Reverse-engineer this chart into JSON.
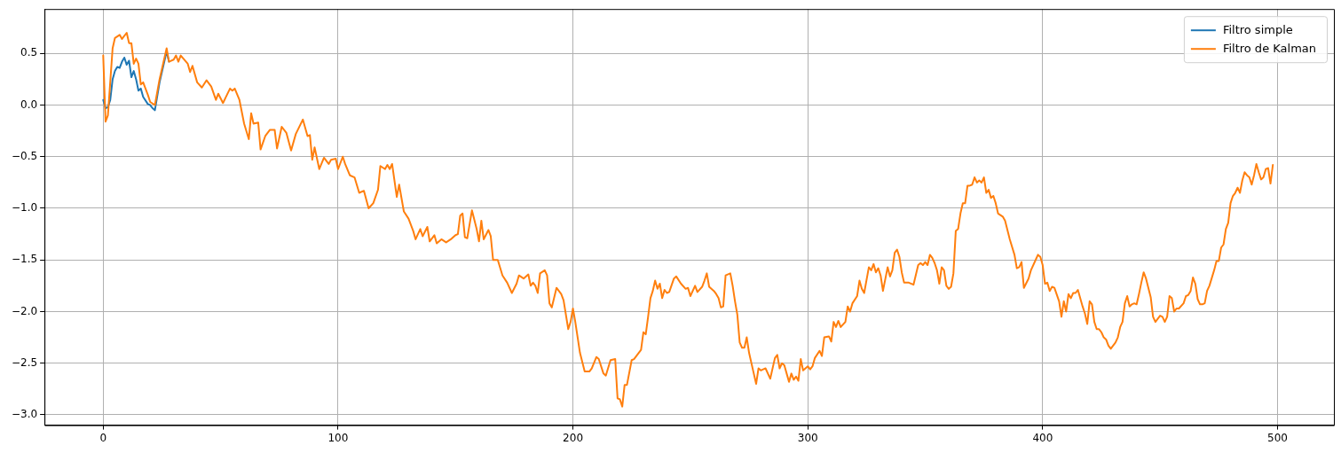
{
  "chart_data": {
    "type": "line",
    "legend": "top right",
    "grid": true,
    "xlim": [
      -25,
      524
    ],
    "ylim": [
      -3.1,
      0.93
    ],
    "xticks": [
      0,
      100,
      200,
      300,
      400,
      500
    ],
    "yticks": [
      {
        "value": -3,
        "label": "−3.0"
      },
      {
        "value": -2.5,
        "label": "−2.5"
      },
      {
        "value": -2,
        "label": "−2.0"
      },
      {
        "value": -1.5,
        "label": "−1.5"
      },
      {
        "value": -1,
        "label": "−1.0"
      },
      {
        "value": -0.5,
        "label": "−0.5"
      },
      {
        "value": 0,
        "label": "0.0"
      },
      0.5
    ],
    "series": [
      {
        "name": "Filtro simple",
        "color": "#1f77b4",
        "x": [
          0,
          1,
          2,
          3,
          4,
          5,
          6,
          7,
          8,
          9,
          10,
          11,
          12,
          13,
          14,
          15,
          16,
          17,
          19,
          20,
          21,
          22,
          24,
          27,
          28
        ],
        "values": [
          0.05,
          -0.03,
          -0.02,
          0.05,
          0.25,
          0.33,
          0.37,
          0.36,
          0.42,
          0.46,
          0.39,
          0.43,
          0.27,
          0.33,
          0.25,
          0.14,
          0.16,
          0.08,
          0.01,
          0.0,
          -0.03,
          -0.05,
          0.22,
          0.52,
          0.42
        ]
      },
      {
        "name": "Filtro de Kalman",
        "color": "#ff7f0e",
        "x": [
          0,
          1,
          2,
          4,
          5,
          7,
          8,
          10,
          11,
          12,
          13,
          14,
          15,
          16,
          17,
          19,
          20,
          22,
          24,
          27,
          28,
          30,
          31,
          32,
          33,
          36,
          37,
          38,
          40,
          42,
          44,
          46,
          48,
          49,
          51,
          54,
          55,
          56,
          58,
          60,
          62,
          63,
          64,
          66,
          67,
          69,
          71,
          73,
          74,
          76,
          78,
          80,
          82,
          85,
          87,
          88,
          89,
          90,
          92,
          94,
          96,
          97,
          99,
          100,
          102,
          103,
          105,
          107,
          109,
          111,
          113,
          115,
          117,
          118,
          120,
          121,
          122,
          123,
          125,
          126,
          128,
          130,
          132,
          133,
          135,
          136,
          138,
          139,
          141,
          142,
          144,
          146,
          148,
          150,
          151,
          152,
          153,
          154,
          155,
          157,
          159,
          160,
          161,
          162,
          164,
          165,
          166,
          168,
          170,
          172,
          174,
          176,
          177,
          179,
          181,
          182,
          183,
          184,
          185,
          186,
          188,
          189,
          190,
          191,
          193,
          195,
          196,
          198,
          199,
          200,
          201,
          203,
          205,
          207,
          208,
          210,
          211,
          213,
          214,
          216,
          218,
          219,
          220,
          221,
          222,
          223,
          225,
          226,
          228,
          229,
          230,
          231,
          232,
          233,
          234,
          235,
          236,
          237,
          238,
          239,
          240,
          241,
          243,
          244,
          246,
          248,
          249,
          250,
          252,
          253,
          255,
          256,
          257,
          258,
          260,
          261,
          262,
          263,
          264,
          265,
          267,
          268,
          269,
          270,
          271,
          272,
          273,
          274,
          275,
          277,
          278,
          279,
          280,
          281,
          282,
          284,
          286,
          287,
          288,
          289,
          290,
          291,
          292,
          293,
          294,
          295,
          296,
          297,
          298,
          300,
          301,
          302,
          303,
          305,
          306,
          307,
          309,
          310,
          311,
          312,
          313,
          314,
          316,
          317,
          318,
          319,
          321,
          322,
          323,
          324,
          326,
          327,
          328,
          329,
          330,
          331,
          332,
          334,
          335,
          336,
          337,
          338,
          339,
          340,
          341,
          343,
          345,
          347,
          348,
          349,
          350,
          351,
          352,
          353,
          354,
          355,
          356,
          357,
          358,
          359,
          360,
          361,
          362,
          363,
          364,
          365,
          366,
          367,
          368,
          369,
          370,
          371,
          372,
          373,
          374,
          375,
          376,
          377,
          378,
          379,
          380,
          381,
          383,
          384,
          386,
          388,
          389,
          390,
          391,
          392,
          394,
          395,
          397,
          398,
          399,
          400,
          401,
          402,
          403,
          404,
          405,
          407,
          408,
          409,
          410,
          411,
          412,
          413,
          414,
          415,
          417,
          418,
          419,
          420,
          421,
          422,
          423,
          424,
          425,
          426,
          427,
          428,
          429,
          430,
          431,
          432,
          433,
          434,
          435,
          436,
          437,
          438,
          439,
          440,
          441,
          442,
          443,
          444,
          446,
          447,
          448,
          449,
          450,
          451,
          452,
          453,
          454,
          455,
          456,
          457,
          458,
          460,
          461,
          462,
          463,
          464,
          465,
          466,
          467,
          468,
          469,
          470,
          471,
          473,
          474,
          475,
          476,
          477,
          478,
          479,
          480,
          481,
          482,
          483,
          484,
          485,
          486,
          487,
          488,
          489,
          490,
          491,
          492,
          493,
          494,
          495,
          496,
          497,
          498
        ],
        "values": [
          0.48,
          -0.16,
          -0.1,
          0.55,
          0.65,
          0.68,
          0.64,
          0.7,
          0.6,
          0.6,
          0.4,
          0.45,
          0.4,
          0.2,
          0.22,
          0.1,
          0.03,
          0.0,
          0.25,
          0.55,
          0.42,
          0.44,
          0.48,
          0.42,
          0.48,
          0.4,
          0.32,
          0.38,
          0.22,
          0.17,
          0.24,
          0.18,
          0.05,
          0.11,
          0.02,
          0.16,
          0.14,
          0.16,
          0.05,
          -0.18,
          -0.33,
          -0.08,
          -0.18,
          -0.17,
          -0.43,
          -0.3,
          -0.24,
          -0.24,
          -0.42,
          -0.21,
          -0.27,
          -0.44,
          -0.28,
          -0.14,
          -0.3,
          -0.29,
          -0.53,
          -0.41,
          -0.62,
          -0.51,
          -0.57,
          -0.53,
          -0.52,
          -0.62,
          -0.5,
          -0.57,
          -0.68,
          -0.7,
          -0.85,
          -0.83,
          -1.0,
          -0.95,
          -0.82,
          -0.59,
          -0.62,
          -0.58,
          -0.62,
          -0.57,
          -0.89,
          -0.77,
          -1.03,
          -1.1,
          -1.22,
          -1.3,
          -1.2,
          -1.27,
          -1.18,
          -1.32,
          -1.26,
          -1.34,
          -1.3,
          -1.33,
          -1.3,
          -1.26,
          -1.25,
          -1.07,
          -1.05,
          -1.28,
          -1.29,
          -1.02,
          -1.2,
          -1.32,
          -1.12,
          -1.3,
          -1.21,
          -1.27,
          -1.5,
          -1.5,
          -1.65,
          -1.72,
          -1.82,
          -1.73,
          -1.65,
          -1.68,
          -1.64,
          -1.75,
          -1.72,
          -1.75,
          -1.82,
          -1.63,
          -1.6,
          -1.65,
          -1.92,
          -1.96,
          -1.77,
          -1.83,
          -1.89,
          -2.17,
          -2.1,
          -1.97,
          -2.1,
          -2.4,
          -2.58,
          -2.58,
          -2.55,
          -2.44,
          -2.46,
          -2.6,
          -2.62,
          -2.47,
          -2.46,
          -2.84,
          -2.85,
          -2.92,
          -2.71,
          -2.71,
          -2.47,
          -2.46,
          -2.4,
          -2.37,
          -2.2,
          -2.22,
          -2.05,
          -1.87,
          -1.8,
          -1.7,
          -1.78,
          -1.73,
          -1.87,
          -1.79,
          -1.82,
          -1.81,
          -1.68,
          -1.66,
          -1.73,
          -1.78,
          -1.77,
          -1.85,
          -1.75,
          -1.81,
          -1.76,
          -1.7,
          -1.63,
          -1.76,
          -1.8,
          -1.83,
          -1.87,
          -1.96,
          -1.95,
          -1.65,
          -1.63,
          -1.75,
          -1.9,
          -2.03,
          -2.3,
          -2.35,
          -2.35,
          -2.25,
          -2.4,
          -2.6,
          -2.7,
          -2.55,
          -2.57,
          -2.56,
          -2.55,
          -2.65,
          -2.45,
          -2.42,
          -2.55,
          -2.5,
          -2.52,
          -2.6,
          -2.68,
          -2.6,
          -2.66,
          -2.63,
          -2.67,
          -2.46,
          -2.57,
          -2.53,
          -2.56,
          -2.53,
          -2.45,
          -2.38,
          -2.43,
          -2.25,
          -2.24,
          -2.29,
          -2.1,
          -2.15,
          -2.09,
          -2.15,
          -2.1,
          -1.95,
          -2.0,
          -1.92,
          -1.85,
          -1.7,
          -1.78,
          -1.82,
          -1.57,
          -1.6,
          -1.54,
          -1.62,
          -1.58,
          -1.65,
          -1.8,
          -1.57,
          -1.66,
          -1.6,
          -1.43,
          -1.4,
          -1.47,
          -1.62,
          -1.72,
          -1.72,
          -1.74,
          -1.55,
          -1.53,
          -1.55,
          -1.52,
          -1.55,
          -1.45,
          -1.48,
          -1.53,
          -1.6,
          -1.73,
          -1.57,
          -1.6,
          -1.75,
          -1.78,
          -1.76,
          -1.63,
          -1.22,
          -1.2,
          -1.05,
          -0.95,
          -0.95,
          -0.78,
          -0.78,
          -0.77,
          -0.7,
          -0.75,
          -0.73,
          -0.75,
          -0.7,
          -0.85,
          -0.82,
          -0.9,
          -0.88,
          -0.95,
          -1.05,
          -1.08,
          -1.12,
          -1.3,
          -1.45,
          -1.58,
          -1.57,
          -1.52,
          -1.77,
          -1.68,
          -1.6,
          -1.5,
          -1.45,
          -1.47,
          -1.55,
          -1.73,
          -1.72,
          -1.8,
          -1.76,
          -1.77,
          -1.9,
          -2.05,
          -1.9,
          -2.0,
          -1.83,
          -1.87,
          -1.82,
          -1.82,
          -1.79,
          -1.95,
          -2.02,
          -2.12,
          -1.9,
          -1.93,
          -2.1,
          -2.17,
          -2.17,
          -2.2,
          -2.25,
          -2.27,
          -2.33,
          -2.36,
          -2.33,
          -2.3,
          -2.25,
          -2.15,
          -2.1,
          -1.92,
          -1.85,
          -1.95,
          -1.93,
          -1.92,
          -1.93,
          -1.83,
          -1.72,
          -1.62,
          -1.68,
          -1.86,
          -2.05,
          -2.1,
          -2.07,
          -2.04,
          -2.05,
          -2.1,
          -2.05,
          -1.85,
          -1.87,
          -2.0,
          -1.97,
          -1.97,
          -1.92,
          -1.85,
          -1.84,
          -1.8,
          -1.67,
          -1.73,
          -1.88,
          -1.93,
          -1.93,
          -1.92,
          -1.8,
          -1.75,
          -1.6,
          -1.51,
          -1.51,
          -1.38,
          -1.35,
          -1.2,
          -1.14,
          -0.95,
          -0.88,
          -0.85,
          -0.8,
          -0.85,
          -0.73,
          -0.65,
          -0.68,
          -0.7,
          -0.77,
          -0.68,
          -0.57,
          -0.65,
          -0.72,
          -0.7,
          -0.62,
          -0.61,
          -0.76,
          -0.58
        ]
      }
    ]
  }
}
